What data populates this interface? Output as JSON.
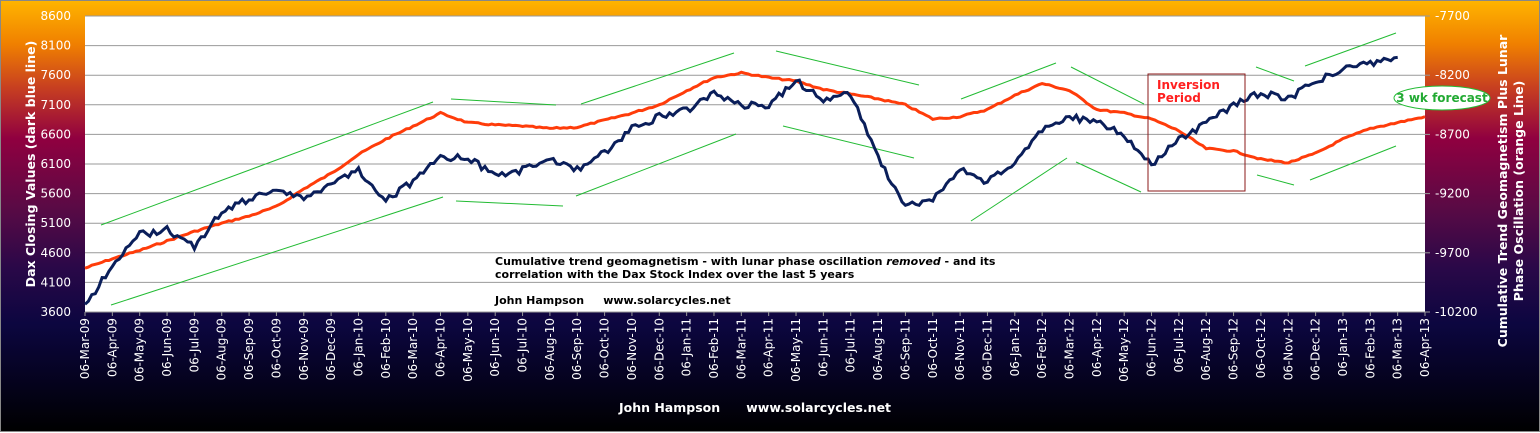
{
  "chart_data": {
    "type": "line",
    "title": "Cumulative trend geomagnetism - with lunar phase oscillation removed - and its correlation with the Dax Stock Index over the last 5 years",
    "annotation_lines": [
      "Cumulative trend geomagnetism - with lunar phase oscillation ",
      "removed",
      " - and its",
      "correlation with the Dax Stock Index over the last 5 years"
    ],
    "author_note": "John Hampson     www.solarcycles.net",
    "footer": "John Hampson      www.solarcycles.net",
    "ylabel_left": "Dax Closing  Values (dark blue line)",
    "ylabel_right_1": "Cumulative Trend Geomagnetism Plus Lunar",
    "ylabel_right_2": "Phase Oscillation  (orange Line)",
    "ylim_left": [
      3600,
      8600
    ],
    "ylim_right": [
      -10200,
      -7700
    ],
    "yticks_left": [
      "8600",
      "8100",
      "7600",
      "7100",
      "6600",
      "6100",
      "5600",
      "5100",
      "4600",
      "4100",
      "3600"
    ],
    "yticks_right": [
      "-7700",
      "-8200",
      "-8700",
      "-9200",
      "-9700",
      "-10200"
    ],
    "grid": true,
    "categories": [
      "06-Mar-09",
      "06-Apr-09",
      "06-May-09",
      "06-Jun-09",
      "06-Jul-09",
      "06-Aug-09",
      "06-Sep-09",
      "06-Oct-09",
      "06-Nov-09",
      "06-Dec-09",
      "06-Jan-10",
      "06-Feb-10",
      "06-Mar-10",
      "06-Apr-10",
      "06-May-10",
      "06-Jun-10",
      "06-Jul-10",
      "06-Aug-10",
      "06-Sep-10",
      "06-Oct-10",
      "06-Nov-10",
      "06-Dec-10",
      "06-Jan-11",
      "06-Feb-11",
      "06-Mar-11",
      "06-Apr-11",
      "06-May-11",
      "06-Jun-11",
      "06-Jul-11",
      "06-Aug-11",
      "06-Sep-11",
      "06-Oct-11",
      "06-Nov-11",
      "06-Dec-11",
      "06-Jan-12",
      "06-Feb-12",
      "06-Mar-12",
      "06-Apr-12",
      "06-May-12",
      "06-Jun-12",
      "06-Jul-12",
      "06-Aug-12",
      "06-Sep-12",
      "06-Oct-12",
      "06-Nov-12",
      "06-Dec-12",
      "06-Jan-13",
      "06-Feb-13",
      "06-Mar-13",
      "06-Apr-13"
    ],
    "series": [
      {
        "name": "Dax Closing Values",
        "axis": "left",
        "color": "#0a1e5a",
        "values": [
          3700,
          4400,
          4900,
          5000,
          4700,
          5300,
          5500,
          5700,
          5500,
          5800,
          6000,
          5500,
          5800,
          6200,
          6200,
          5900,
          6000,
          6200,
          6000,
          6300,
          6700,
          6900,
          7000,
          7300,
          7100,
          7100,
          7500,
          7200,
          7300,
          6200,
          5400,
          5500,
          6000,
          5800,
          6100,
          6700,
          6900,
          6800,
          6600,
          6100,
          6500,
          6800,
          7100,
          7300,
          7200,
          7500,
          7700,
          7800,
          7900,
          null
        ]
      },
      {
        "name": "Cumulative Trend Geomagnetism Plus Lunar Phase Oscillation",
        "axis": "right",
        "color": "#ff3c0a",
        "values": [
          -9830,
          -9750,
          -9680,
          -9600,
          -9520,
          -9450,
          -9390,
          -9310,
          -9160,
          -9030,
          -8870,
          -8740,
          -8630,
          -8520,
          -8600,
          -8620,
          -8630,
          -8650,
          -8640,
          -8580,
          -8520,
          -8450,
          -8330,
          -8220,
          -8180,
          -8220,
          -8250,
          -8320,
          -8360,
          -8400,
          -8450,
          -8570,
          -8550,
          -8490,
          -8370,
          -8270,
          -8330,
          -8490,
          -8520,
          -8570,
          -8670,
          -8820,
          -8840,
          -8910,
          -8940,
          -8860,
          -8740,
          -8650,
          -8600,
          -8550
        ]
      }
    ],
    "inversion_label_1": "Inversion",
    "inversion_label_2": "Period",
    "forecast_label": "3 wk forecast",
    "colors": {
      "grid": "#999999",
      "arrows": "#22bb33",
      "inversion": "#8b1a1a",
      "inversion_text": "#ff2020"
    }
  }
}
